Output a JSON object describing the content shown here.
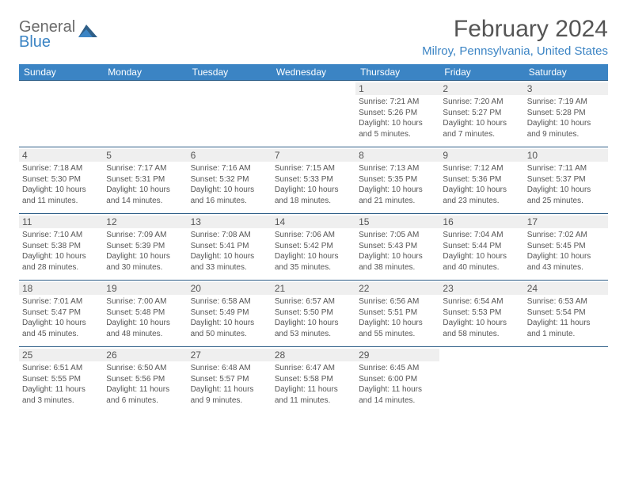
{
  "logo": {
    "general": "General",
    "blue": "Blue"
  },
  "header": {
    "title": "February 2024",
    "location": "Milroy, Pennsylvania, United States"
  },
  "colors": {
    "header_bg": "#3b84c4",
    "header_text": "#ffffff",
    "border": "#2f5f88",
    "daynum_bg": "#efefef",
    "text": "#555555"
  },
  "day_headers": [
    "Sunday",
    "Monday",
    "Tuesday",
    "Wednesday",
    "Thursday",
    "Friday",
    "Saturday"
  ],
  "weeks": [
    [
      null,
      null,
      null,
      null,
      {
        "n": "1",
        "sr": "Sunrise: 7:21 AM",
        "ss": "Sunset: 5:26 PM",
        "d1": "Daylight: 10 hours",
        "d2": "and 5 minutes."
      },
      {
        "n": "2",
        "sr": "Sunrise: 7:20 AM",
        "ss": "Sunset: 5:27 PM",
        "d1": "Daylight: 10 hours",
        "d2": "and 7 minutes."
      },
      {
        "n": "3",
        "sr": "Sunrise: 7:19 AM",
        "ss": "Sunset: 5:28 PM",
        "d1": "Daylight: 10 hours",
        "d2": "and 9 minutes."
      }
    ],
    [
      {
        "n": "4",
        "sr": "Sunrise: 7:18 AM",
        "ss": "Sunset: 5:30 PM",
        "d1": "Daylight: 10 hours",
        "d2": "and 11 minutes."
      },
      {
        "n": "5",
        "sr": "Sunrise: 7:17 AM",
        "ss": "Sunset: 5:31 PM",
        "d1": "Daylight: 10 hours",
        "d2": "and 14 minutes."
      },
      {
        "n": "6",
        "sr": "Sunrise: 7:16 AM",
        "ss": "Sunset: 5:32 PM",
        "d1": "Daylight: 10 hours",
        "d2": "and 16 minutes."
      },
      {
        "n": "7",
        "sr": "Sunrise: 7:15 AM",
        "ss": "Sunset: 5:33 PM",
        "d1": "Daylight: 10 hours",
        "d2": "and 18 minutes."
      },
      {
        "n": "8",
        "sr": "Sunrise: 7:13 AM",
        "ss": "Sunset: 5:35 PM",
        "d1": "Daylight: 10 hours",
        "d2": "and 21 minutes."
      },
      {
        "n": "9",
        "sr": "Sunrise: 7:12 AM",
        "ss": "Sunset: 5:36 PM",
        "d1": "Daylight: 10 hours",
        "d2": "and 23 minutes."
      },
      {
        "n": "10",
        "sr": "Sunrise: 7:11 AM",
        "ss": "Sunset: 5:37 PM",
        "d1": "Daylight: 10 hours",
        "d2": "and 25 minutes."
      }
    ],
    [
      {
        "n": "11",
        "sr": "Sunrise: 7:10 AM",
        "ss": "Sunset: 5:38 PM",
        "d1": "Daylight: 10 hours",
        "d2": "and 28 minutes."
      },
      {
        "n": "12",
        "sr": "Sunrise: 7:09 AM",
        "ss": "Sunset: 5:39 PM",
        "d1": "Daylight: 10 hours",
        "d2": "and 30 minutes."
      },
      {
        "n": "13",
        "sr": "Sunrise: 7:08 AM",
        "ss": "Sunset: 5:41 PM",
        "d1": "Daylight: 10 hours",
        "d2": "and 33 minutes."
      },
      {
        "n": "14",
        "sr": "Sunrise: 7:06 AM",
        "ss": "Sunset: 5:42 PM",
        "d1": "Daylight: 10 hours",
        "d2": "and 35 minutes."
      },
      {
        "n": "15",
        "sr": "Sunrise: 7:05 AM",
        "ss": "Sunset: 5:43 PM",
        "d1": "Daylight: 10 hours",
        "d2": "and 38 minutes."
      },
      {
        "n": "16",
        "sr": "Sunrise: 7:04 AM",
        "ss": "Sunset: 5:44 PM",
        "d1": "Daylight: 10 hours",
        "d2": "and 40 minutes."
      },
      {
        "n": "17",
        "sr": "Sunrise: 7:02 AM",
        "ss": "Sunset: 5:45 PM",
        "d1": "Daylight: 10 hours",
        "d2": "and 43 minutes."
      }
    ],
    [
      {
        "n": "18",
        "sr": "Sunrise: 7:01 AM",
        "ss": "Sunset: 5:47 PM",
        "d1": "Daylight: 10 hours",
        "d2": "and 45 minutes."
      },
      {
        "n": "19",
        "sr": "Sunrise: 7:00 AM",
        "ss": "Sunset: 5:48 PM",
        "d1": "Daylight: 10 hours",
        "d2": "and 48 minutes."
      },
      {
        "n": "20",
        "sr": "Sunrise: 6:58 AM",
        "ss": "Sunset: 5:49 PM",
        "d1": "Daylight: 10 hours",
        "d2": "and 50 minutes."
      },
      {
        "n": "21",
        "sr": "Sunrise: 6:57 AM",
        "ss": "Sunset: 5:50 PM",
        "d1": "Daylight: 10 hours",
        "d2": "and 53 minutes."
      },
      {
        "n": "22",
        "sr": "Sunrise: 6:56 AM",
        "ss": "Sunset: 5:51 PM",
        "d1": "Daylight: 10 hours",
        "d2": "and 55 minutes."
      },
      {
        "n": "23",
        "sr": "Sunrise: 6:54 AM",
        "ss": "Sunset: 5:53 PM",
        "d1": "Daylight: 10 hours",
        "d2": "and 58 minutes."
      },
      {
        "n": "24",
        "sr": "Sunrise: 6:53 AM",
        "ss": "Sunset: 5:54 PM",
        "d1": "Daylight: 11 hours",
        "d2": "and 1 minute."
      }
    ],
    [
      {
        "n": "25",
        "sr": "Sunrise: 6:51 AM",
        "ss": "Sunset: 5:55 PM",
        "d1": "Daylight: 11 hours",
        "d2": "and 3 minutes."
      },
      {
        "n": "26",
        "sr": "Sunrise: 6:50 AM",
        "ss": "Sunset: 5:56 PM",
        "d1": "Daylight: 11 hours",
        "d2": "and 6 minutes."
      },
      {
        "n": "27",
        "sr": "Sunrise: 6:48 AM",
        "ss": "Sunset: 5:57 PM",
        "d1": "Daylight: 11 hours",
        "d2": "and 9 minutes."
      },
      {
        "n": "28",
        "sr": "Sunrise: 6:47 AM",
        "ss": "Sunset: 5:58 PM",
        "d1": "Daylight: 11 hours",
        "d2": "and 11 minutes."
      },
      {
        "n": "29",
        "sr": "Sunrise: 6:45 AM",
        "ss": "Sunset: 6:00 PM",
        "d1": "Daylight: 11 hours",
        "d2": "and 14 minutes."
      },
      null,
      null
    ]
  ]
}
